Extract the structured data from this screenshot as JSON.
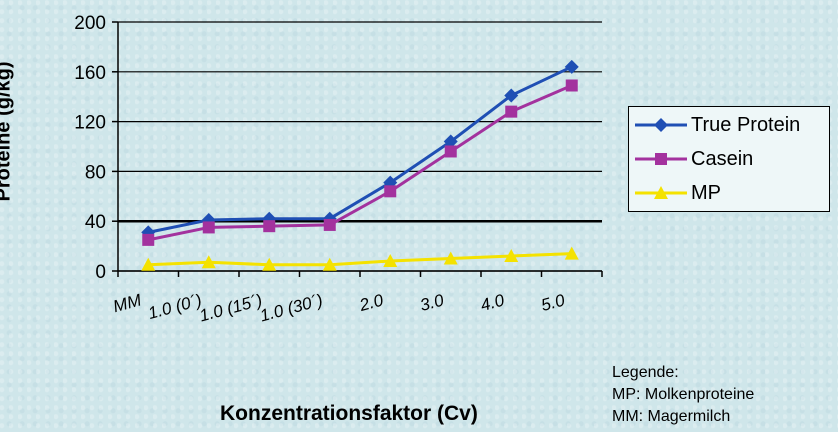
{
  "chart_data": {
    "type": "line",
    "categories": [
      "MM",
      "1.0 (0´)",
      "1.0 (15´)",
      "1.0 (30´)",
      "2.0",
      "3.0",
      "4.0",
      "5.0"
    ],
    "series": [
      {
        "name": "True Protein",
        "values": [
          31,
          41,
          42,
          42,
          71,
          104,
          141,
          164
        ],
        "color": "#1f4fb4",
        "marker": "diamond"
      },
      {
        "name": "Casein",
        "values": [
          25,
          35,
          36,
          37,
          64,
          96,
          128,
          149
        ],
        "color": "#a3329e",
        "marker": "square"
      },
      {
        "name": "MP",
        "values": [
          5,
          7,
          5,
          5,
          8,
          10,
          12,
          14
        ],
        "color": "#f4e200",
        "marker": "triangle"
      }
    ],
    "ylabel": "Proteine (g/kg)",
    "xlabel": "Konzentrationsfaktor (Cv)",
    "ylim": [
      0,
      200
    ],
    "yticks": [
      "0",
      "40",
      "80",
      "120",
      "160",
      "200"
    ],
    "grid": true,
    "legend_position": "right"
  },
  "notes": {
    "title": "Legende:",
    "line1": "MP: Molkenproteine",
    "line2": "MM: Magermilch"
  }
}
